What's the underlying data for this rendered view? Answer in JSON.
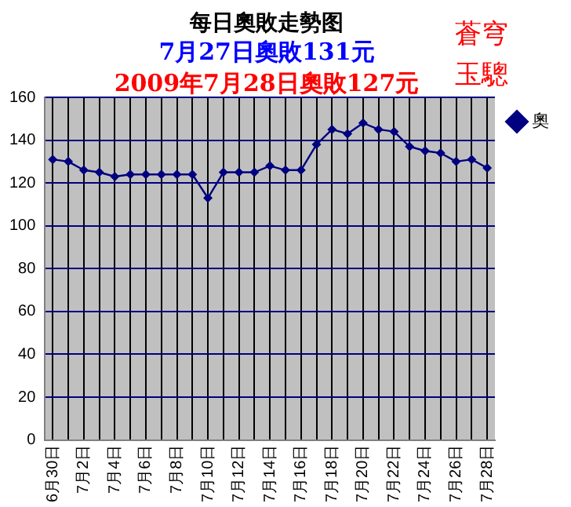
{
  "chart_data": {
    "type": "line",
    "title": "每日奧敗走勢图",
    "subtitle": "7月27日奧敗131元",
    "annotations": [
      "2009年7月28日奧敗127元",
      "蒼穹",
      "玉驄"
    ],
    "categories": [
      "6月30日",
      null,
      "7月2日",
      null,
      "7月4日",
      null,
      "7月6日",
      null,
      "7月8日",
      null,
      "7月10日",
      null,
      "7月12日",
      null,
      "7月14日",
      null,
      "7月16日",
      null,
      "7月18日",
      null,
      "7月20日",
      null,
      "7月22日",
      null,
      "7月24日",
      null,
      "7月26日",
      null,
      "7月28日"
    ],
    "series": [
      {
        "name": "奧",
        "color": "#000080",
        "values": [
          131,
          130,
          126,
          125,
          123,
          124,
          124,
          124,
          124,
          124,
          113,
          125,
          125,
          125,
          128,
          126,
          126,
          138,
          145,
          143,
          148,
          145,
          144,
          137,
          135,
          134,
          130,
          131,
          127
        ]
      }
    ],
    "ylim": [
      0,
      160
    ],
    "yticks": [
      0,
      20,
      40,
      60,
      80,
      100,
      120,
      140,
      160
    ],
    "grid": true,
    "legend": "right",
    "marker": "diamond",
    "line_style": "solid"
  }
}
